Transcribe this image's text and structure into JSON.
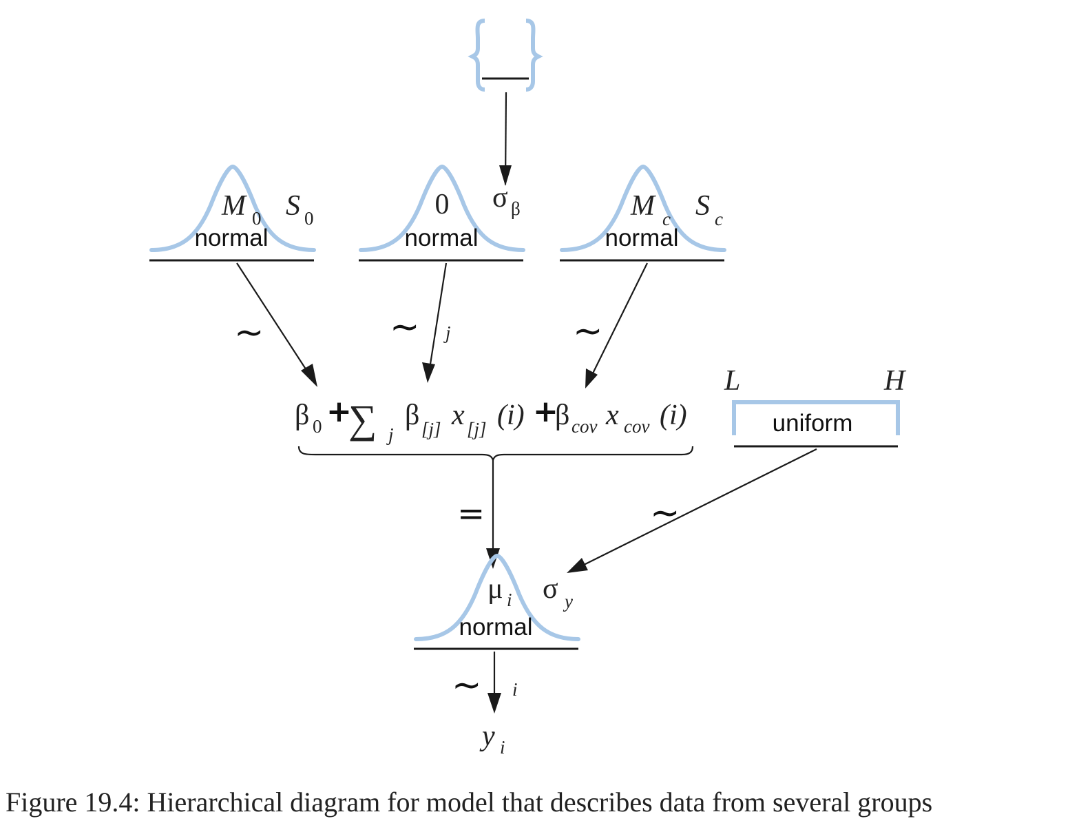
{
  "top_node": {
    "shape": "bracket-blank"
  },
  "nodes": {
    "n0": {
      "dist": "normal",
      "p1": "M",
      "p1_sub": "0",
      "p2": "S",
      "p2_sub": "0"
    },
    "nb": {
      "dist": "normal",
      "p1": "0",
      "p2": "σ",
      "p2_sub": "β"
    },
    "nc": {
      "dist": "normal",
      "p1": "M",
      "p1_sub": "c",
      "p2": "S",
      "p2_sub": "c"
    },
    "uniform": {
      "dist": "uniform",
      "p1": "L",
      "p2": "H"
    },
    "likelihood": {
      "dist": "normal",
      "p1": "μ",
      "p1_sub": "i",
      "p2": "σ",
      "p2_sub": "y"
    }
  },
  "edges": {
    "e0": {
      "symbol": "~"
    },
    "eb": {
      "symbol": "~",
      "index": "j"
    },
    "ec": {
      "symbol": "~"
    },
    "eu": {
      "symbol": "~"
    },
    "emu": {
      "symbol": "="
    },
    "ey": {
      "symbol": "~",
      "index": "i"
    }
  },
  "formula": {
    "beta0": "β",
    "beta0_sub": "0",
    "plus": "+",
    "sum": "∑",
    "sum_sub": "j",
    "betaj": "β",
    "betaj_sub": "[j]",
    "xj": "x",
    "xj_sub": "[j]",
    "arg": "(i)",
    "betacov": "β",
    "betacov_sub": "cov",
    "xcov": "x",
    "xcov_sub": "cov"
  },
  "data_node": {
    "label": "y",
    "sub": "i"
  },
  "caption": "Figure 19.4: Hierarchical diagram for model that describes data from several groups"
}
